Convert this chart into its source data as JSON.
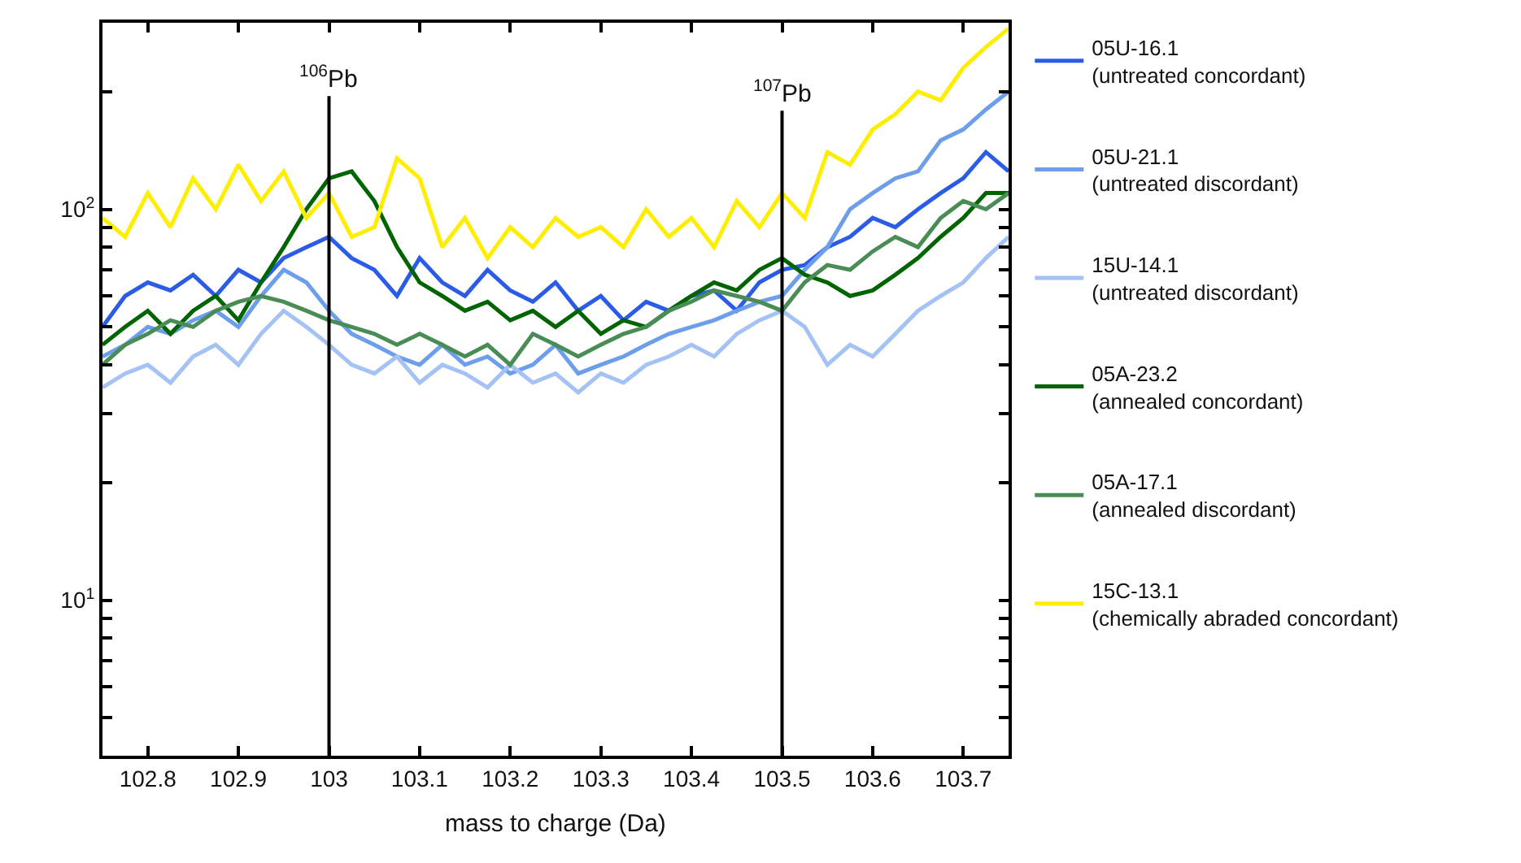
{
  "chart_data": {
    "type": "line",
    "xlabel": "mass to charge (Da)",
    "x": [
      102.75,
      102.775,
      102.8,
      102.825,
      102.85,
      102.875,
      102.9,
      102.925,
      102.95,
      102.975,
      103.0,
      103.025,
      103.05,
      103.075,
      103.1,
      103.125,
      103.15,
      103.175,
      103.2,
      103.225,
      103.25,
      103.275,
      103.3,
      103.325,
      103.35,
      103.375,
      103.4,
      103.425,
      103.45,
      103.475,
      103.5,
      103.525,
      103.55,
      103.575,
      103.6,
      103.625,
      103.65,
      103.675,
      103.7,
      103.725,
      103.75
    ],
    "series": [
      {
        "name": "05U-16.1\n(untreated concordant)",
        "color": "#2b5ce8",
        "values": [
          50,
          60,
          65,
          62,
          68,
          60,
          70,
          65,
          75,
          80,
          85,
          75,
          70,
          60,
          75,
          65,
          60,
          70,
          62,
          58,
          65,
          55,
          60,
          52,
          58,
          55,
          60,
          62,
          55,
          65,
          70,
          72,
          80,
          85,
          95,
          90,
          100,
          110,
          120,
          140,
          125
        ]
      },
      {
        "name": "05U-21.1\n(untreated discordant)",
        "color": "#6d9eeb",
        "values": [
          42,
          45,
          50,
          48,
          52,
          55,
          50,
          60,
          70,
          65,
          55,
          48,
          45,
          42,
          40,
          45,
          40,
          42,
          38,
          40,
          45,
          38,
          40,
          42,
          45,
          48,
          50,
          52,
          55,
          58,
          60,
          70,
          80,
          100,
          110,
          120,
          125,
          150,
          160,
          180,
          200
        ]
      },
      {
        "name": "15U-14.1\n(untreated discordant)",
        "color": "#a4c2f4",
        "values": [
          35,
          38,
          40,
          36,
          42,
          45,
          40,
          48,
          55,
          50,
          45,
          40,
          38,
          42,
          36,
          40,
          38,
          35,
          40,
          36,
          38,
          34,
          38,
          36,
          40,
          42,
          45,
          42,
          48,
          52,
          55,
          50,
          40,
          45,
          42,
          48,
          55,
          60,
          65,
          75,
          85
        ]
      },
      {
        "name": "05A-23.2\n(annealed concordant)",
        "color": "#006400",
        "values": [
          45,
          50,
          55,
          48,
          55,
          60,
          52,
          65,
          80,
          100,
          120,
          125,
          105,
          80,
          65,
          60,
          55,
          58,
          52,
          55,
          50,
          55,
          48,
          52,
          50,
          55,
          60,
          65,
          62,
          70,
          75,
          68,
          65,
          60,
          62,
          68,
          75,
          85,
          95,
          110,
          110
        ]
      },
      {
        "name": "05A-17.1\n(annealed discordant)",
        "color": "#4a8c55",
        "values": [
          40,
          45,
          48,
          52,
          50,
          55,
          58,
          60,
          58,
          55,
          52,
          50,
          48,
          45,
          48,
          45,
          42,
          45,
          40,
          48,
          45,
          42,
          45,
          48,
          50,
          55,
          58,
          62,
          60,
          58,
          55,
          65,
          72,
          70,
          78,
          85,
          80,
          95,
          105,
          100,
          110
        ]
      },
      {
        "name": "15C-13.1\n(chemically abraded concordant)",
        "color": "#ffee00",
        "values": [
          95,
          85,
          110,
          90,
          120,
          100,
          130,
          105,
          125,
          95,
          110,
          85,
          90,
          135,
          120,
          80,
          95,
          75,
          90,
          80,
          95,
          85,
          90,
          80,
          100,
          85,
          95,
          80,
          105,
          90,
          110,
          95,
          140,
          130,
          160,
          175,
          200,
          190,
          230,
          260,
          290
        ]
      }
    ],
    "log": "y",
    "xlim": [
      102.75,
      103.75
    ],
    "xticks": [
      {
        "value": 102.8,
        "label": "102.8"
      },
      {
        "value": 102.9,
        "label": "102.9"
      },
      103,
      {
        "value": 103.1,
        "label": "103.1"
      },
      {
        "value": 103.2,
        "label": "103.2"
      },
      {
        "value": 103.3,
        "label": "103.3"
      },
      {
        "value": 103.4,
        "label": "103.4"
      },
      {
        "value": 103.5,
        "label": "103.5"
      },
      {
        "value": 103.6,
        "label": "103.6"
      },
      {
        "value": 103.7,
        "label": "103.7"
      }
    ],
    "ylim": [
      4,
      300
    ],
    "yticks": [
      {
        "value": 5,
        "label": null
      },
      {
        "value": 6,
        "label": null
      },
      {
        "value": 7,
        "label": null
      },
      {
        "value": 8,
        "label": null
      },
      {
        "value": 9,
        "label": null
      },
      {
        "value": 10,
        "label": "10$^{1}$"
      },
      {
        "value": 20,
        "label": null
      },
      {
        "value": 30,
        "label": null
      },
      {
        "value": 40,
        "label": null
      },
      {
        "value": 50,
        "label": null
      },
      {
        "value": 60,
        "label": null
      },
      {
        "value": 70,
        "label": null
      },
      {
        "value": 80,
        "label": null
      },
      {
        "value": 90,
        "label": null
      },
      {
        "value": 100,
        "label": "10$^{2}$"
      },
      {
        "value": 200,
        "label": null
      },
      {
        "value": 300,
        "label": null
      }
    ],
    "ref_lines": [
      {
        "axis": "x",
        "value": 103,
        "label": "$^{106}$Pb",
        "color": "#000000"
      },
      {
        "axis": "x",
        "value": 103.5,
        "label": "$^{107}$Pb",
        "color": "#000000"
      }
    ],
    "legend": "right",
    "line_style": "solid"
  }
}
